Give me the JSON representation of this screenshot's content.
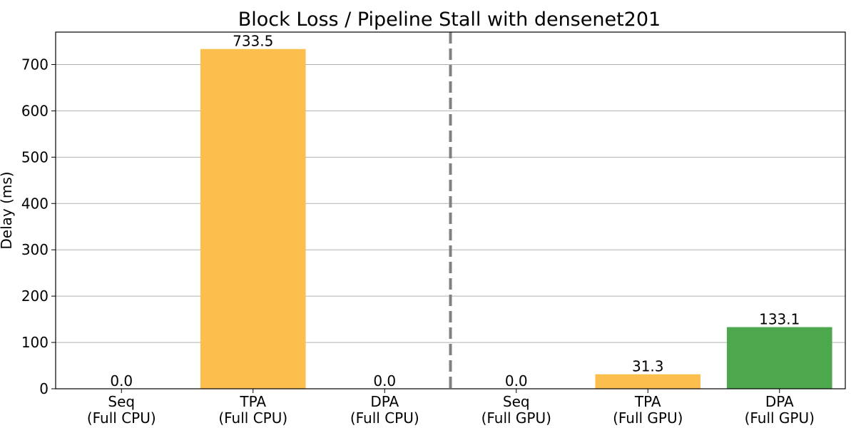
{
  "chart_data": {
    "type": "bar",
    "title": "Block Loss / Pipeline Stall with densenet201",
    "xlabel": "",
    "ylabel": "Delay (ms)",
    "ylim": [
      0,
      770
    ],
    "yticks": [
      0,
      100,
      200,
      300,
      400,
      500,
      600,
      700
    ],
    "grid": "y",
    "categories": [
      [
        "Seq",
        "(Full CPU)"
      ],
      [
        "TPA",
        "(Full CPU)"
      ],
      [
        "DPA",
        "(Full CPU)"
      ],
      [
        "Seq",
        "(Full GPU)"
      ],
      [
        "TPA",
        "(Full GPU)"
      ],
      [
        "DPA",
        "(Full GPU)"
      ]
    ],
    "values": [
      0.0,
      733.5,
      0.0,
      0.0,
      31.3,
      133.1
    ],
    "value_labels": [
      "0.0",
      "733.5",
      "0.0",
      "0.0",
      "31.3",
      "133.1"
    ],
    "bar_colors": [
      "#fcbf4e",
      "#fcbf4e",
      "#4da84d",
      "#fcbf4e",
      "#fcbf4e",
      "#4da84d"
    ],
    "divider": {
      "after_category_index": 2,
      "style": "dashed",
      "color": "#808080"
    }
  }
}
